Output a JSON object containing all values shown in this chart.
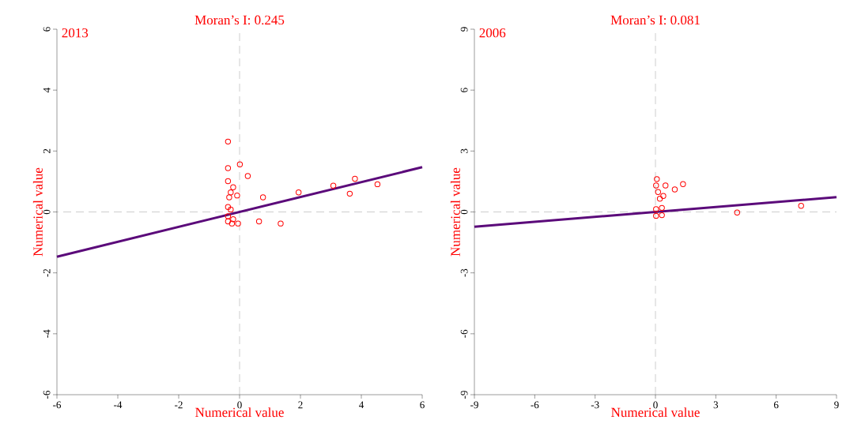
{
  "chart_data": [
    {
      "type": "scatter",
      "title": "2013",
      "subtitle": "Moran’s I: 0.245",
      "xlabel": "Numerical value",
      "ylabel": "Numerical value",
      "xlim": [
        -6,
        6
      ],
      "ylim": [
        -6,
        6
      ],
      "xticks": [
        -6,
        -4,
        -2,
        0,
        2,
        4,
        6
      ],
      "yticks": [
        -6,
        -4,
        -2,
        0,
        2,
        4,
        6
      ],
      "series": [
        {
          "type": "scatter",
          "color": "#ff0000",
          "marker": "circle",
          "x": [
            -0.38,
            0.01,
            -0.38,
            0.27,
            -0.38,
            -0.21,
            -0.29,
            -0.08,
            -0.34,
            0.77,
            1.94,
            3.08,
            3.79,
            4.53,
            3.62,
            -0.38,
            -0.29,
            -0.38,
            -0.38,
            -0.25,
            -0.05,
            0.64,
            1.35,
            -0.21
          ],
          "values": [
            2.31,
            1.56,
            1.44,
            1.18,
            1.01,
            0.81,
            0.64,
            0.54,
            0.48,
            0.48,
            0.64,
            0.86,
            1.09,
            0.91,
            0.6,
            0.16,
            0.08,
            -0.14,
            -0.31,
            -0.38,
            -0.38,
            -0.31,
            -0.38,
            -0.24
          ]
        },
        {
          "type": "line",
          "color": "#5b0a7a",
          "marker": "none",
          "x": [
            -6,
            6
          ],
          "values": [
            -1.47,
            1.47
          ]
        }
      ],
      "ref_lines": [
        {
          "axis": "x",
          "value": 0,
          "line_style": "dashed",
          "color": "#808080"
        },
        {
          "axis": "y",
          "value": 0,
          "line_style": "dashed",
          "color": "#808080"
        }
      ]
    },
    {
      "type": "scatter",
      "title": "2006",
      "subtitle": "Moran’s I: 0.081",
      "xlabel": "Numerical value",
      "ylabel": "Numerical value",
      "xlim": [
        -9,
        9
      ],
      "ylim": [
        -9,
        9
      ],
      "xticks": [
        -9,
        -6,
        -3,
        0,
        3,
        6,
        9
      ],
      "yticks": [
        -9,
        -6,
        -3,
        0,
        3,
        6,
        9
      ],
      "series": [
        {
          "type": "scatter",
          "color": "#ff0000",
          "marker": "circle",
          "x": [
            0.07,
            0.03,
            0.5,
            0.96,
            1.37,
            0.13,
            0.39,
            0.22,
            0.03,
            0.32,
            0.03,
            0.32,
            4.06,
            7.24
          ],
          "values": [
            1.62,
            1.3,
            1.3,
            1.11,
            1.37,
            0.98,
            0.79,
            0.65,
            0.14,
            0.2,
            -0.19,
            -0.16,
            -0.03,
            0.3
          ]
        },
        {
          "type": "line",
          "color": "#5b0a7a",
          "marker": "none",
          "x": [
            -9,
            9
          ],
          "values": [
            -0.73,
            0.73
          ]
        }
      ],
      "ref_lines": [
        {
          "axis": "x",
          "value": 0,
          "line_style": "dashed",
          "color": "#808080"
        },
        {
          "axis": "y",
          "value": 0,
          "line_style": "dashed",
          "color": "#808080"
        }
      ]
    }
  ]
}
